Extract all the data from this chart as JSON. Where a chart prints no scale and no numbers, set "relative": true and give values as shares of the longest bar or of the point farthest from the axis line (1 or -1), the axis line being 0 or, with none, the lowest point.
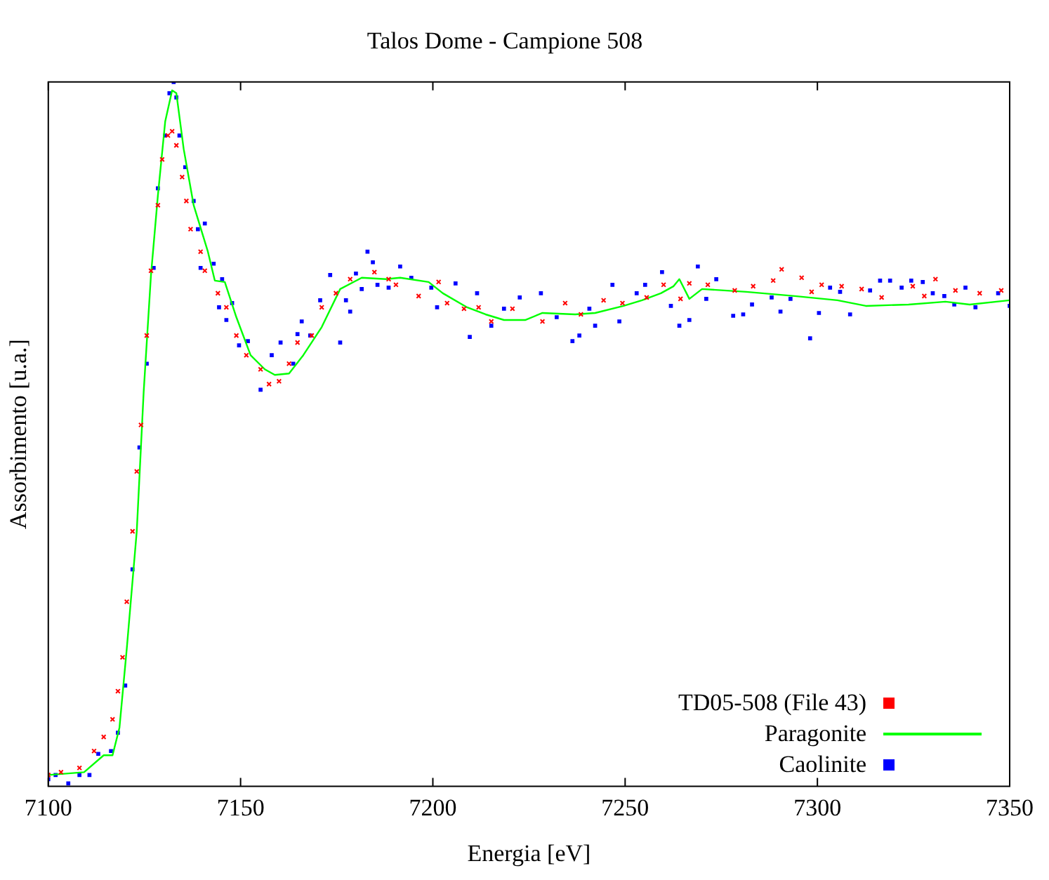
{
  "chart_data": {
    "type": "scatter",
    "title": "Talos Dome - Campione 508",
    "xlabel": "Energia [eV]",
    "ylabel": "Assorbimento [u.a.]",
    "relative": true,
    "xlim": [
      7100,
      7350
    ],
    "xticks": [
      7100,
      7150,
      7200,
      7250,
      7300,
      7350
    ],
    "tick_labels": "x",
    "grid": false,
    "legend": "bottom right",
    "series": [
      {
        "name": "TD05-508 (File 43)",
        "color": "#ff0000",
        "type": "scatter",
        "marker": "cross",
        "x": [
          7100,
          7103.3,
          7108.1,
          7111.9,
          7114.4,
          7116.7,
          7118.1,
          7119.3,
          7120.4,
          7121.9,
          7123,
          7124.1,
          7125.6,
          7126.7,
          7128.5,
          7129.6,
          7131.1,
          7132.2,
          7133.3,
          7134.8,
          7135.9,
          7137,
          7139.6,
          7140.7,
          7144.1,
          7146.3,
          7148.9,
          7151.5,
          7155.2,
          7157.4,
          7160,
          7162.6,
          7164.8,
          7168.5,
          7171.1,
          7174.8,
          7178.5,
          7184.8,
          7188.5,
          7190.4,
          7196.3,
          7201.5,
          7203.7,
          7208.1,
          7211.9,
          7215.2,
          7220.7,
          7228.5,
          7234.4,
          7238.5,
          7244.4,
          7249.3,
          7255.6,
          7260,
          7264.4,
          7266.7,
          7271.5,
          7278.5,
          7283.3,
          7288.5,
          7290.7,
          7295.9,
          7298.5,
          7301.1,
          7306.3,
          7311.5,
          7316.7,
          7324.8,
          7327.8,
          7330.7,
          7335.9,
          7342.2,
          7347.8
        ],
        "values": [
          0.016,
          0.02,
          0.026,
          0.05,
          0.07,
          0.095,
          0.135,
          0.183,
          0.262,
          0.362,
          0.447,
          0.513,
          0.64,
          0.732,
          0.825,
          0.89,
          0.924,
          0.93,
          0.91,
          0.865,
          0.831,
          0.791,
          0.759,
          0.732,
          0.7,
          0.68,
          0.64,
          0.612,
          0.592,
          0.571,
          0.575,
          0.6,
          0.63,
          0.64,
          0.68,
          0.7,
          0.72,
          0.73,
          0.72,
          0.712,
          0.696,
          0.716,
          0.686,
          0.678,
          0.68,
          0.66,
          0.678,
          0.66,
          0.686,
          0.67,
          0.69,
          0.686,
          0.694,
          0.712,
          0.692,
          0.714,
          0.712,
          0.704,
          0.71,
          0.718,
          0.734,
          0.722,
          0.702,
          0.712,
          0.71,
          0.706,
          0.694,
          0.71,
          0.696,
          0.72,
          0.704,
          0.7,
          0.704
        ]
      },
      {
        "name": "Paragonite",
        "color": "#00ff00",
        "type": "line",
        "marker": "none",
        "x": [
          7100,
          7109.3,
          7114.4,
          7116.7,
          7118.5,
          7120.4,
          7123,
          7124.8,
          7126.7,
          7128.5,
          7130.4,
          7132.2,
          7133.3,
          7135.2,
          7137.8,
          7141.5,
          7143.3,
          7145.9,
          7148.9,
          7152.6,
          7156.3,
          7158.9,
          7162.6,
          7166.3,
          7171.1,
          7175.9,
          7181.5,
          7187.8,
          7191.5,
          7198.9,
          7202.6,
          7208.9,
          7213.7,
          7218.5,
          7224,
          7228.5,
          7237,
          7242.2,
          7249.6,
          7254.4,
          7259.3,
          7262.6,
          7264.1,
          7266.7,
          7270,
          7281.5,
          7294.1,
          7305.2,
          7312.6,
          7323.7,
          7333.3,
          7339.6,
          7350
        ],
        "values": [
          0.016,
          0.02,
          0.044,
          0.044,
          0.083,
          0.195,
          0.362,
          0.56,
          0.726,
          0.839,
          0.944,
          0.988,
          0.984,
          0.905,
          0.825,
          0.759,
          0.718,
          0.716,
          0.666,
          0.612,
          0.592,
          0.584,
          0.586,
          0.612,
          0.652,
          0.706,
          0.722,
          0.72,
          0.722,
          0.716,
          0.7,
          0.68,
          0.67,
          0.662,
          0.662,
          0.672,
          0.67,
          0.672,
          0.682,
          0.69,
          0.7,
          0.71,
          0.72,
          0.692,
          0.706,
          0.702,
          0.696,
          0.69,
          0.682,
          0.684,
          0.688,
          0.684,
          0.69
        ]
      },
      {
        "name": "Caolinite",
        "color": "#0000ff",
        "type": "scatter",
        "marker": "square",
        "x": [
          7100,
          7101.9,
          7105.2,
          7108.1,
          7110.7,
          7113,
          7116.3,
          7118.1,
          7120,
          7121.9,
          7123.7,
          7125.6,
          7127.4,
          7128.5,
          7130.4,
          7131.5,
          7132.6,
          7133.3,
          7134.1,
          7135.6,
          7137.8,
          7138.9,
          7140.7,
          7139.6,
          7143,
          7145.2,
          7144.4,
          7146.3,
          7147.8,
          7149.6,
          7151.9,
          7155.2,
          7158.1,
          7160.4,
          7163.7,
          7164.8,
          7165.9,
          7168.1,
          7170.7,
          7173.3,
          7175.9,
          7177.4,
          7178.5,
          7180,
          7181.5,
          7183,
          7184.4,
          7185.6,
          7188.5,
          7191.5,
          7194.4,
          7199.6,
          7201.1,
          7205.9,
          7209.6,
          7211.5,
          7215.2,
          7218.5,
          7222.6,
          7228.1,
          7232.2,
          7236.3,
          7238.1,
          7240.7,
          7242.2,
          7246.7,
          7248.5,
          7253,
          7255.2,
          7259.6,
          7261.9,
          7264.1,
          7266.7,
          7268.9,
          7271.1,
          7273.7,
          7278.1,
          7280.7,
          7283,
          7288.1,
          7290.4,
          7293,
          7298.1,
          7300.4,
          7303.3,
          7305.9,
          7308.5,
          7313.7,
          7316.3,
          7318.9,
          7321.9,
          7324.4,
          7327.4,
          7330,
          7333,
          7335.6,
          7338.5,
          7341.1,
          7347,
          7350
        ],
        "values": [
          0.01,
          0.016,
          0.004,
          0.016,
          0.016,
          0.046,
          0.05,
          0.076,
          0.143,
          0.308,
          0.481,
          0.6,
          0.736,
          0.849,
          0.924,
          0.984,
          1,
          0.978,
          0.924,
          0.879,
          0.831,
          0.791,
          0.799,
          0.736,
          0.742,
          0.72,
          0.68,
          0.662,
          0.686,
          0.626,
          0.632,
          0.563,
          0.612,
          0.63,
          0.6,
          0.642,
          0.66,
          0.64,
          0.69,
          0.726,
          0.63,
          0.69,
          0.674,
          0.728,
          0.706,
          0.759,
          0.744,
          0.712,
          0.708,
          0.738,
          0.722,
          0.708,
          0.68,
          0.714,
          0.638,
          0.7,
          0.654,
          0.678,
          0.694,
          0.7,
          0.666,
          0.632,
          0.64,
          0.678,
          0.654,
          0.712,
          0.66,
          0.7,
          0.712,
          0.73,
          0.682,
          0.654,
          0.662,
          0.738,
          0.692,
          0.72,
          0.668,
          0.67,
          0.684,
          0.694,
          0.674,
          0.692,
          0.636,
          0.672,
          0.708,
          0.702,
          0.67,
          0.704,
          0.718,
          0.718,
          0.708,
          0.718,
          0.716,
          0.7,
          0.696,
          0.684,
          0.708,
          0.68,
          0.7,
          0.682
        ]
      }
    ]
  }
}
